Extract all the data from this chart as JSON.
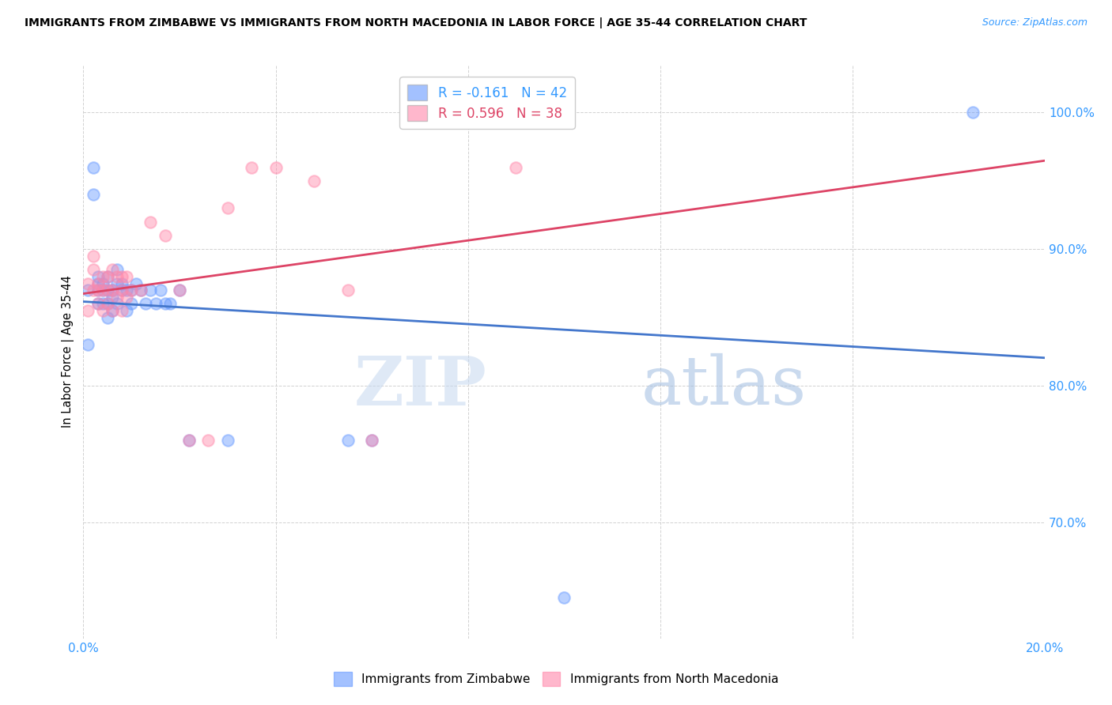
{
  "title": "IMMIGRANTS FROM ZIMBABWE VS IMMIGRANTS FROM NORTH MACEDONIA IN LABOR FORCE | AGE 35-44 CORRELATION CHART",
  "source": "Source: ZipAtlas.com",
  "ylabel": "In Labor Force | Age 35-44",
  "blue_label": "Immigrants from Zimbabwe",
  "pink_label": "Immigrants from North Macedonia",
  "blue_R": -0.161,
  "blue_N": 42,
  "pink_R": 0.596,
  "pink_N": 38,
  "blue_color": "#6699ff",
  "pink_color": "#ff88aa",
  "blue_line_color": "#4477cc",
  "pink_line_color": "#dd4466",
  "watermark_zip": "ZIP",
  "watermark_atlas": "atlas",
  "xlim": [
    0.0,
    0.2
  ],
  "ylim": [
    0.615,
    1.035
  ],
  "xticks": [
    0.0,
    0.04,
    0.08,
    0.12,
    0.16,
    0.2
  ],
  "yticks": [
    0.7,
    0.8,
    0.9,
    1.0
  ],
  "ytick_labels": [
    "70.0%",
    "80.0%",
    "90.0%",
    "100.0%"
  ],
  "blue_x": [
    0.001,
    0.001,
    0.002,
    0.002,
    0.003,
    0.003,
    0.003,
    0.003,
    0.004,
    0.004,
    0.004,
    0.005,
    0.005,
    0.005,
    0.005,
    0.006,
    0.006,
    0.006,
    0.007,
    0.007,
    0.007,
    0.008,
    0.008,
    0.009,
    0.009,
    0.01,
    0.01,
    0.011,
    0.012,
    0.013,
    0.014,
    0.015,
    0.016,
    0.017,
    0.018,
    0.02,
    0.022,
    0.03,
    0.055,
    0.06,
    0.1,
    0.185
  ],
  "blue_y": [
    0.87,
    0.83,
    0.96,
    0.94,
    0.88,
    0.875,
    0.87,
    0.86,
    0.875,
    0.87,
    0.86,
    0.88,
    0.87,
    0.86,
    0.85,
    0.87,
    0.865,
    0.855,
    0.885,
    0.875,
    0.86,
    0.875,
    0.87,
    0.87,
    0.855,
    0.87,
    0.86,
    0.875,
    0.87,
    0.86,
    0.87,
    0.86,
    0.87,
    0.86,
    0.86,
    0.87,
    0.76,
    0.76,
    0.76,
    0.76,
    0.645,
    1.0
  ],
  "pink_x": [
    0.001,
    0.001,
    0.002,
    0.002,
    0.002,
    0.003,
    0.003,
    0.003,
    0.004,
    0.004,
    0.004,
    0.005,
    0.005,
    0.005,
    0.006,
    0.006,
    0.006,
    0.007,
    0.007,
    0.008,
    0.008,
    0.008,
    0.009,
    0.009,
    0.01,
    0.012,
    0.014,
    0.017,
    0.02,
    0.022,
    0.026,
    0.03,
    0.035,
    0.04,
    0.048,
    0.055,
    0.06,
    0.09
  ],
  "pink_y": [
    0.875,
    0.855,
    0.895,
    0.885,
    0.87,
    0.875,
    0.87,
    0.86,
    0.88,
    0.87,
    0.855,
    0.88,
    0.87,
    0.86,
    0.885,
    0.87,
    0.855,
    0.88,
    0.865,
    0.88,
    0.87,
    0.855,
    0.88,
    0.865,
    0.87,
    0.87,
    0.92,
    0.91,
    0.87,
    0.76,
    0.76,
    0.93,
    0.96,
    0.96,
    0.95,
    0.87,
    0.76,
    0.96
  ]
}
